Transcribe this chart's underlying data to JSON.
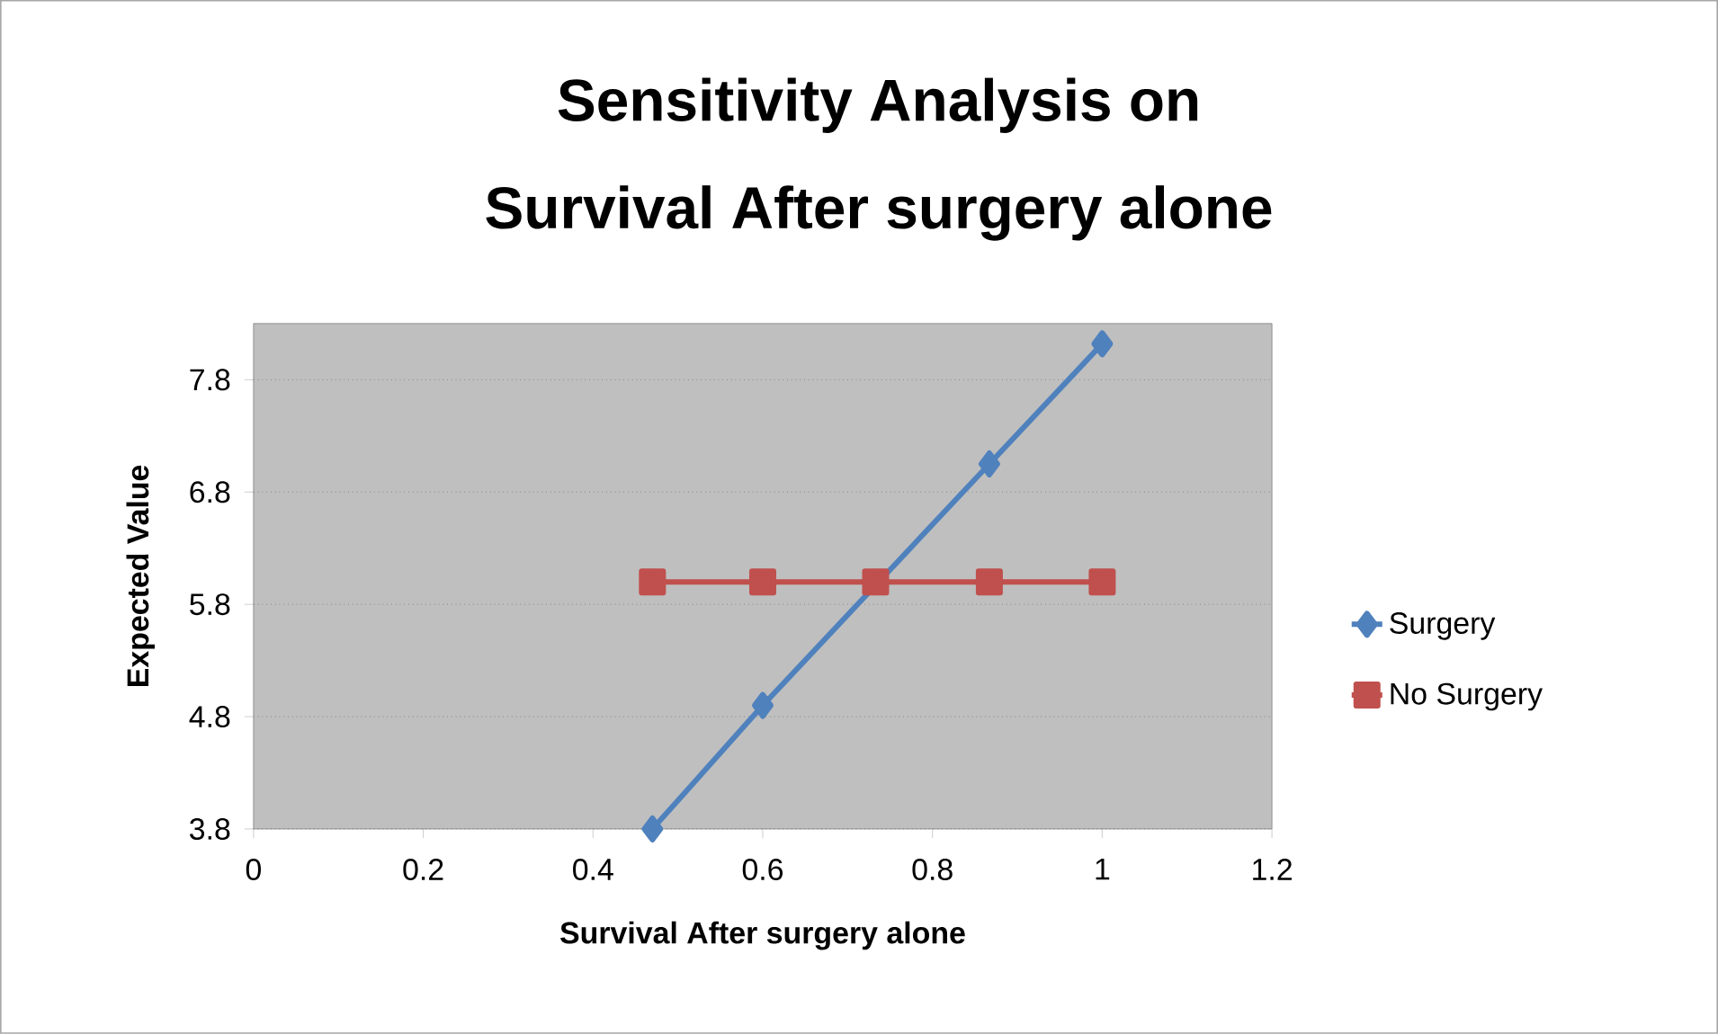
{
  "chart_data": {
    "type": "line",
    "title": "Sensitivity Analysis on\nSurvival After surgery alone",
    "xlabel": "Survival After surgery alone",
    "ylabel": "Expected Value",
    "xlim": [
      0,
      1.2
    ],
    "xticks": [
      0,
      0.2,
      0.4,
      0.6,
      0.8,
      1,
      1.2
    ],
    "ylim": [
      3.8,
      8.3
    ],
    "yticks": [
      3.8,
      4.8,
      5.8,
      6.8,
      7.8
    ],
    "grid": "y",
    "legend": "right",
    "line_style": "solid",
    "series": [
      {
        "name": "Surgery",
        "color": "#4f81bd",
        "marker": "diamond",
        "x": [
          0.47,
          0.6,
          0.733,
          0.867,
          1.0
        ],
        "values": [
          3.8,
          4.9,
          null,
          7.05,
          8.12
        ]
      },
      {
        "name": "No Surgery",
        "color": "#c0504d",
        "marker": "square",
        "x": [
          0.47,
          0.6,
          0.733,
          0.867,
          1.0
        ],
        "values": [
          6.0,
          6.0,
          6.0,
          6.0,
          6.0
        ]
      }
    ]
  }
}
